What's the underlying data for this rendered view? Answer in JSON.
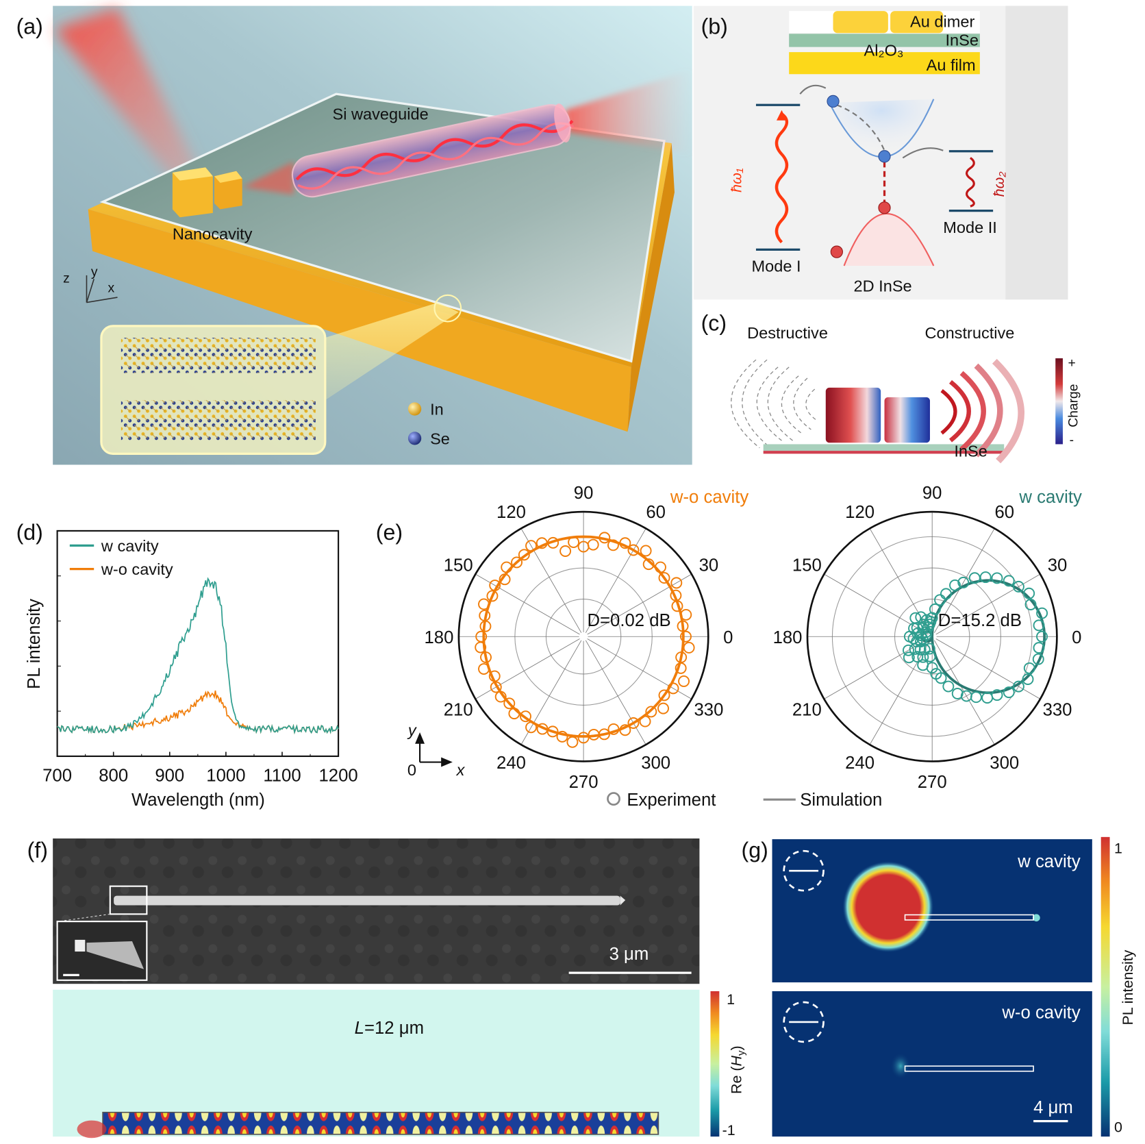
{
  "panel_labels": {
    "a": "(a)",
    "b": "(b)",
    "c": "(c)",
    "d": "(d)",
    "e": "(e)",
    "f": "(f)",
    "g": "(g)"
  },
  "panel_a": {
    "waveguide_label": "Si waveguide",
    "nanocavity_label": "Nanocavity",
    "axes": {
      "z": "z",
      "y": "y",
      "x": "x"
    },
    "legend_in": "In",
    "legend_se": "Se",
    "colors": {
      "gold": "#f2b21e",
      "laser": "#ff3b30",
      "indium": "#e8b422",
      "selenium": "#2a3f8f"
    }
  },
  "panel_b": {
    "au_dimer": "Au dimer",
    "inse_layer": "InSe",
    "al2o3": "Al₂O₃",
    "au_film": "Au film",
    "hw1": "ħω₁",
    "hw2": "ħω₂",
    "mode1": "Mode I",
    "mode2": "Mode II",
    "material": "2D InSe"
  },
  "panel_c": {
    "destructive": "Destructive",
    "constructive": "Constructive",
    "inse": "InSe",
    "colorbar_label": "Charge",
    "colorbar_plus": "+",
    "colorbar_minus": "-"
  },
  "chart_data": [
    {
      "panel": "d",
      "type": "line",
      "xlabel": "Wavelength (nm)",
      "ylabel": "PL intensity",
      "xlim": [
        700,
        1200
      ],
      "xticks": [
        700,
        800,
        900,
        1000,
        1100,
        1200
      ],
      "y_units": "arbitrary (no tick labels)",
      "ylim": [
        0,
        1
      ],
      "legend_placement": "top-left",
      "series": [
        {
          "name": "w cavity",
          "color": "#2f9e8f",
          "x": [
            700,
            750,
            800,
            820,
            840,
            860,
            880,
            900,
            920,
            940,
            950,
            960,
            970,
            980,
            990,
            1000,
            1010,
            1020,
            1030,
            1100,
            1200
          ],
          "y": [
            0.12,
            0.12,
            0.12,
            0.125,
            0.15,
            0.2,
            0.28,
            0.38,
            0.5,
            0.6,
            0.66,
            0.74,
            0.78,
            0.76,
            0.68,
            0.48,
            0.25,
            0.15,
            0.12,
            0.12,
            0.12
          ]
        },
        {
          "name": "w-o cavity",
          "color": "#f07d0a",
          "x": [
            700,
            800,
            850,
            900,
            930,
            950,
            970,
            985,
            1000,
            1020,
            1040,
            1200
          ],
          "y": [
            0.12,
            0.12,
            0.14,
            0.17,
            0.2,
            0.24,
            0.28,
            0.27,
            0.2,
            0.14,
            0.12,
            0.12
          ]
        }
      ]
    },
    {
      "panel": "e-left",
      "type": "polar-scatter",
      "title": "w-o cavity",
      "annotation": "D=0.02 dB",
      "color": "#f07d0a",
      "angle_ticks": [
        0,
        30,
        60,
        90,
        120,
        150,
        180,
        210,
        240,
        270,
        300,
        330
      ],
      "rlim": [
        0,
        1
      ],
      "experiment_angles_step_deg": 6,
      "experiment_r": [
        0.82,
        0.8,
        0.84,
        0.79,
        0.81,
        0.86,
        0.8,
        0.83,
        0.78,
        0.85,
        0.8,
        0.82,
        0.77,
        0.81,
        0.74,
        0.72,
        0.76,
        0.7,
        0.79,
        0.82,
        0.84,
        0.81,
        0.8,
        0.83,
        0.78,
        0.82,
        0.8,
        0.84,
        0.81,
        0.79,
        0.82,
        0.83,
        0.8,
        0.84,
        0.78,
        0.81,
        0.82,
        0.8,
        0.83,
        0.79,
        0.84,
        0.81,
        0.8,
        0.82,
        0.85,
        0.81,
        0.79,
        0.8,
        0.78,
        0.82,
        0.8,
        0.84,
        0.81,
        0.86,
        0.8,
        0.83,
        0.88,
        0.82,
        0.8,
        0.85
      ],
      "simulation": {
        "shape": "circle",
        "r": 0.8
      }
    },
    {
      "panel": "e-right",
      "type": "polar-scatter",
      "title": "w cavity",
      "annotation": "D=15.2 dB",
      "color": "#2f9e8f",
      "sim_color": "#2a7a72",
      "angle_ticks": [
        0,
        30,
        60,
        90,
        120,
        150,
        180,
        210,
        240,
        270,
        300,
        330
      ],
      "rlim": [
        0,
        1
      ],
      "experiment_angles_step_deg": 6,
      "experiment_r": [
        0.88,
        0.86,
        0.9,
        0.83,
        0.85,
        0.8,
        0.76,
        0.7,
        0.64,
        0.58,
        0.5,
        0.45,
        0.36,
        0.3,
        0.22,
        0.15,
        0.12,
        0.1,
        0.14,
        0.08,
        0.18,
        0.12,
        0.2,
        0.1,
        0.06,
        0.14,
        0.16,
        0.05,
        0.12,
        0.09,
        0.18,
        0.15,
        0.08,
        0.13,
        0.1,
        0.22,
        0.17,
        0.25,
        0.14,
        0.2,
        0.12,
        0.18,
        0.24,
        0.1,
        0.16,
        0.25,
        0.3,
        0.34,
        0.42,
        0.5,
        0.55,
        0.6,
        0.66,
        0.7,
        0.76,
        0.8,
        0.84,
        0.82,
        0.87,
        0.86
      ],
      "simulation": {
        "shape": "forward lobe",
        "r_max": 0.9,
        "back_lobe": 0.08
      }
    }
  ],
  "panel_e": {
    "axis_y": "y",
    "axis_x": "x",
    "axis_origin": "0",
    "legend_experiment": "Experiment",
    "legend_simulation": "Simulation"
  },
  "panel_f": {
    "scale_bar": "3 μm",
    "length_label_var": "L",
    "length_label_value": "=12 μm",
    "colorbar_max": "1",
    "colorbar_min": "-1",
    "colorbar_label_parts": [
      "Re (",
      "H",
      "y",
      ")"
    ]
  },
  "panel_g": {
    "top_label": "w cavity",
    "bottom_label": "w-o cavity",
    "scale_bar": "4 μm",
    "colorbar_max": "1",
    "colorbar_min": "0",
    "colorbar_label": "PL intensity",
    "bg_color": "#063272"
  }
}
